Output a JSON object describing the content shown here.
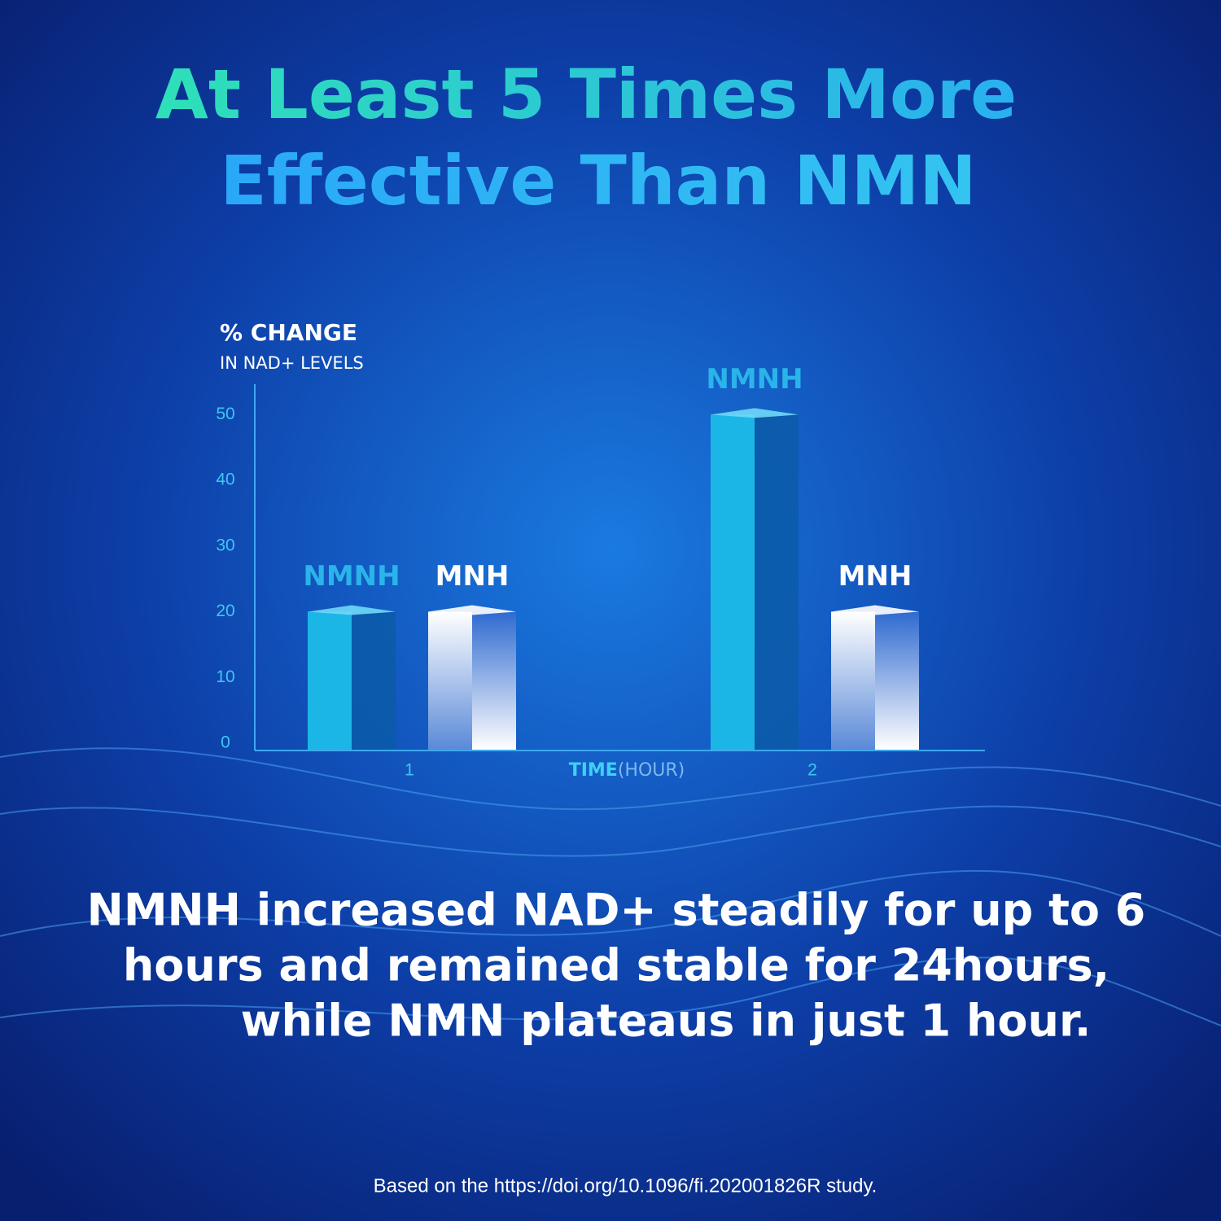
{
  "title": [
    "At Least 5 Times More",
    "Effective Than NMN"
  ],
  "chart_data": {
    "type": "bar",
    "y_label": [
      "% CHANGE",
      "IN NAD+ LEVELS"
    ],
    "x_label": [
      "TIME",
      "(HOUR)"
    ],
    "categories": [
      "1",
      "2"
    ],
    "series": [
      {
        "name": "NMNH",
        "color": "#1cb6e6",
        "values": [
          20,
          50
        ]
      },
      {
        "name": "MNH",
        "color": "#ffffff",
        "values": [
          20,
          20
        ]
      }
    ],
    "ylim": [
      0,
      55
    ],
    "yticks": [
      0,
      10,
      20,
      30,
      40,
      50
    ]
  },
  "body": [
    "NMNH increased NAD+ steadily for up to 6",
    "hours and remained stable for 24hours,",
    "while NMN plateaus in just 1 hour."
  ],
  "footnote": "Based on the https://doi.org/10.1096/fi.202001826R study."
}
